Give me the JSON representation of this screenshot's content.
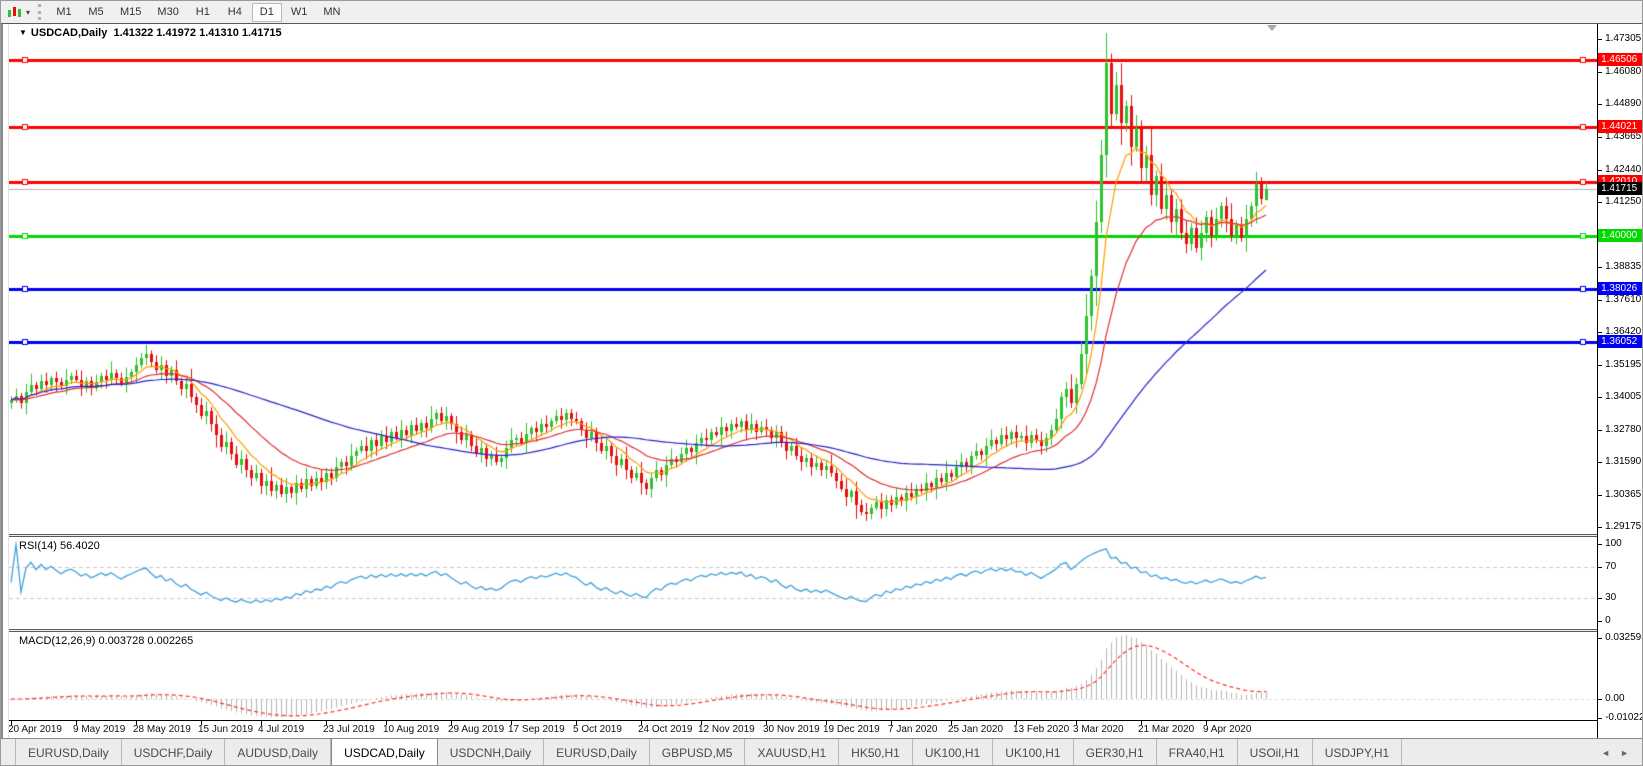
{
  "toolbar": {
    "timeframes": [
      "M1",
      "M5",
      "M15",
      "M30",
      "H1",
      "H4",
      "D1",
      "W1",
      "MN"
    ],
    "active_timeframe": "D1"
  },
  "icons": {
    "dropdown": "▾",
    "title_triangle": "▼",
    "tab_scroll_left": "◄",
    "tab_scroll_right": "►"
  },
  "chart": {
    "title_symbol": "USDCAD,Daily",
    "title_ohlc": "1.41322 1.41972 1.41310 1.41715"
  },
  "chart_data": {
    "type": "candlestick",
    "symbol": "USDCAD",
    "timeframe": "Daily",
    "bar_spacing_px": 5,
    "first_open": 1.338,
    "last_ohlc": {
      "o": 1.41322,
      "h": 1.41972,
      "l": 1.4131,
      "c": 1.41715
    },
    "closes": [
      1.339,
      1.3405,
      1.338,
      1.342,
      1.3445,
      1.343,
      1.346,
      1.3445,
      1.347,
      1.3455,
      1.344,
      1.3465,
      1.348,
      1.3465,
      1.344,
      1.346,
      1.3435,
      1.3455,
      1.348,
      1.3465,
      1.349,
      1.347,
      1.345,
      1.3475,
      1.3495,
      1.352,
      1.3545,
      1.356,
      1.353,
      1.35,
      1.352,
      1.348,
      1.35,
      1.346,
      1.343,
      1.345,
      1.34,
      1.337,
      1.333,
      1.335,
      1.33,
      1.326,
      1.3215,
      1.3235,
      1.319,
      1.315,
      1.317,
      1.313,
      1.31,
      1.312,
      1.307,
      1.309,
      1.305,
      1.3075,
      1.304,
      1.3065,
      1.3045,
      1.308,
      1.306,
      1.3095,
      1.307,
      1.31,
      1.3085,
      1.312,
      1.31,
      1.314,
      1.316,
      1.3145,
      1.318,
      1.32,
      1.322,
      1.32,
      1.324,
      1.322,
      1.3255,
      1.3235,
      1.327,
      1.325,
      1.328,
      1.326,
      1.3295,
      1.3275,
      1.3305,
      1.3285,
      1.332,
      1.334,
      1.331,
      1.333,
      1.33,
      1.327,
      1.324,
      1.326,
      1.322,
      1.319,
      1.321,
      1.317,
      1.3185,
      1.316,
      1.3175,
      1.321,
      1.324,
      1.325,
      1.323,
      1.3265,
      1.3285,
      1.327,
      1.33,
      1.329,
      1.331,
      1.333,
      1.3315,
      1.334,
      1.332,
      1.331,
      1.328,
      1.325,
      1.327,
      1.323,
      1.32,
      1.322,
      1.318,
      1.315,
      1.317,
      1.313,
      1.31,
      1.312,
      1.308,
      1.306,
      1.31,
      1.313,
      1.311,
      1.315,
      1.317,
      1.316,
      1.319,
      1.321,
      1.3195,
      1.323,
      1.325,
      1.324,
      1.327,
      1.326,
      1.329,
      1.3275,
      1.33,
      1.329,
      1.331,
      1.328,
      1.33,
      1.327,
      1.329,
      1.328,
      1.325,
      1.327,
      1.323,
      1.32,
      1.322,
      1.318,
      1.316,
      1.3175,
      1.314,
      1.3155,
      1.313,
      1.3145,
      1.312,
      1.309,
      1.306,
      1.303,
      1.305,
      1.3,
      1.2975,
      1.2965,
      1.299,
      1.301,
      1.2985,
      1.302,
      1.3,
      1.303,
      1.3015,
      1.3045,
      1.303,
      1.306,
      1.305,
      1.308,
      1.3065,
      1.31,
      1.3085,
      1.312,
      1.3105,
      1.314,
      1.316,
      1.3145,
      1.318,
      1.32,
      1.3185,
      1.322,
      1.324,
      1.3225,
      1.326,
      1.3245,
      1.327,
      1.325,
      1.3255,
      1.323,
      1.326,
      1.324,
      1.322,
      1.325,
      1.328,
      1.332,
      1.34,
      1.343,
      1.338,
      1.345,
      1.356,
      1.37,
      1.385,
      1.405,
      1.43,
      1.464,
      1.445,
      1.456,
      1.442,
      1.448,
      1.433,
      1.44,
      1.425,
      1.43,
      1.415,
      1.422,
      1.41,
      1.415,
      1.405,
      1.41,
      1.401,
      1.397,
      1.403,
      1.3955,
      1.401,
      1.407,
      1.4,
      1.406,
      1.411,
      1.406,
      1.4,
      1.404,
      1.399,
      1.406,
      1.411,
      1.419,
      1.4135,
      1.41715
    ],
    "wick_up": [
      0.0012,
      0.0022,
      0.0008,
      0.0018,
      0.003,
      0.001,
      0.0016,
      0.0025,
      0.0007,
      0.002,
      0.0014,
      0.0028,
      0.0009,
      0.0017,
      0.0024,
      0.0011
    ],
    "wick_dn": [
      0.002,
      0.0009,
      0.0016,
      0.0026,
      0.0011,
      0.0019,
      0.0007,
      0.0023,
      0.0015,
      0.0028,
      0.001,
      0.0021,
      0.0013,
      0.0008,
      0.0025,
      0.0017
    ],
    "price_axis": {
      "scale_max": 1.4786,
      "scale_min": 1.2892,
      "ticks": [
        "1.47305",
        "1.46080",
        "1.44890",
        "1.43665",
        "1.42440",
        "1.41250",
        "1.38835",
        "1.37610",
        "1.36420",
        "1.35195",
        "1.34005",
        "1.32780",
        "1.31590",
        "1.30365",
        "1.29175"
      ]
    },
    "time_labels": [
      "20 Apr 2019",
      "9 May 2019",
      "28 May 2019",
      "15 Jun 2019",
      "4 Jul 2019",
      "23 Jul 2019",
      "10 Aug 2019",
      "29 Aug 2019",
      "17 Sep 2019",
      "5 Oct 2019",
      "24 Oct 2019",
      "12 Nov 2019",
      "30 Nov 2019",
      "19 Dec 2019",
      "7 Jan 2020",
      "25 Jan 2020",
      "13 Feb 2020",
      "3 Mar 2020",
      "21 Mar 2020",
      "9 Apr 2020"
    ],
    "time_label_bars": [
      0,
      13,
      25,
      38,
      50,
      63,
      75,
      88,
      100,
      113,
      126,
      138,
      151,
      163,
      176,
      188,
      201,
      213,
      226,
      239
    ],
    "hlines": [
      {
        "price": 1.46506,
        "label": "1.46506",
        "color": "#ff0000"
      },
      {
        "price": 1.44021,
        "label": "1.44021",
        "color": "#ff0000"
      },
      {
        "price": 1.4201,
        "label": "1.42010",
        "color": "#ff0000"
      },
      {
        "price": 1.4,
        "label": "1.40000",
        "color": "#00d800"
      },
      {
        "price": 1.38026,
        "label": "1.38026",
        "color": "#0000f0"
      },
      {
        "price": 1.36052,
        "label": "1.36052",
        "color": "#0000f0"
      }
    ],
    "current_price": {
      "value": 1.41715,
      "label": "1.41715",
      "line_color": "#b4b4b4",
      "badge_color": "#000000"
    },
    "candle_up_color": "#2ec22e",
    "candle_down_color": "#e80e0e",
    "moving_averages": [
      {
        "type": "ema",
        "period": 8,
        "color": "#ff9c00"
      },
      {
        "type": "ema",
        "period": 21,
        "color": "#e03232"
      },
      {
        "type": "sma",
        "period": 55,
        "color": "#2626c8"
      }
    ],
    "rsi": {
      "label": "RSI(14) 56.4020",
      "period": 14,
      "value": 56.402,
      "color": "#41a0dc",
      "levels": [
        70,
        30
      ],
      "level_color": "#c8c8c8",
      "axis_labels": [
        {
          "v": 100,
          "t": "100"
        },
        {
          "v": 70,
          "t": "70"
        },
        {
          "v": 30,
          "t": "30"
        },
        {
          "v": 0,
          "t": "0"
        }
      ]
    },
    "macd": {
      "label": "MACD(12,26,9) 0.003728 0.002265",
      "fast": 12,
      "slow": 26,
      "signal_period": 9,
      "value": 0.003728,
      "signal_value": 0.002265,
      "hist_color": "#b4b4b4",
      "signal_color": "#ff3232",
      "scale_max": 0.0358,
      "scale_min": -0.0112,
      "axis_labels": [
        {
          "v": 0.032595,
          "t": "0.032595"
        },
        {
          "v": 0,
          "t": "0.00"
        },
        {
          "v": -0.010227,
          "t": "-0.010227"
        }
      ]
    }
  },
  "tabs": {
    "items": [
      "EURUSD,Daily",
      "USDCHF,Daily",
      "AUDUSD,Daily",
      "USDCAD,Daily",
      "USDCNH,Daily",
      "EURUSD,Daily",
      "GBPUSD,M5",
      "XAUUSD,H1",
      "HK50,H1",
      "UK100,H1",
      "UK100,H1",
      "GER30,H1",
      "FRA40,H1",
      "USOil,H1",
      "USDJPY,H1"
    ],
    "active_index": 3
  }
}
